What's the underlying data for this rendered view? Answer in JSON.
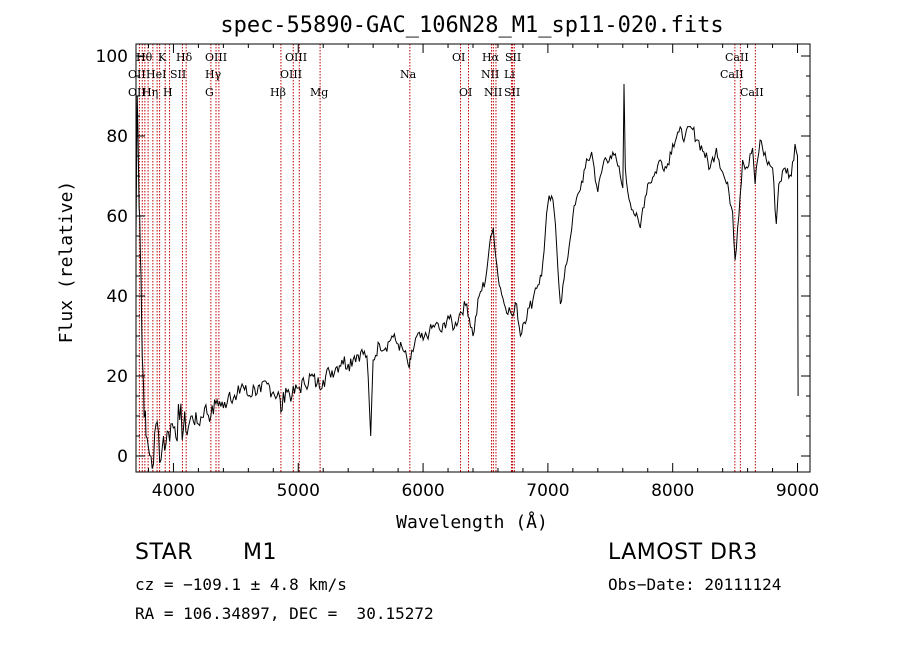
{
  "chart_data": {
    "type": "line",
    "title": "spec-55890-GAC_106N28_M1_sp11-020.fits",
    "xlabel": "Wavelength (Å)",
    "ylabel": "Flux (relative)",
    "xlim": [
      3700,
      9100
    ],
    "ylim": [
      -4,
      103
    ],
    "xticks": [
      4000,
      5000,
      6000,
      7000,
      8000,
      9000
    ],
    "yticks": [
      0,
      20,
      40,
      60,
      80,
      100
    ],
    "series": [
      {
        "name": "flux",
        "x": [
          3700,
          3710,
          3720,
          3730,
          3740,
          3750,
          3760,
          3770,
          3780,
          3800,
          3820,
          3840,
          3860,
          3880,
          3900,
          3920,
          3940,
          3960,
          3980,
          4000,
          4050,
          4100,
          4150,
          4200,
          4250,
          4300,
          4350,
          4400,
          4450,
          4500,
          4550,
          4600,
          4650,
          4700,
          4750,
          4800,
          4850,
          4861,
          4900,
          4950,
          5000,
          5050,
          5100,
          5150,
          5200,
          5250,
          5300,
          5350,
          5400,
          5450,
          5500,
          5550,
          5580,
          5600,
          5650,
          5700,
          5750,
          5800,
          5850,
          5890,
          5900,
          5950,
          6000,
          6050,
          6100,
          6150,
          6200,
          6250,
          6300,
          6350,
          6400,
          6450,
          6500,
          6530,
          6563,
          6600,
          6620,
          6650,
          6700,
          6720,
          6750,
          6780,
          6800,
          6850,
          6880,
          6900,
          6950,
          7000,
          7030,
          7060,
          7100,
          7150,
          7200,
          7250,
          7300,
          7350,
          7400,
          7450,
          7500,
          7550,
          7580,
          7600,
          7610,
          7620,
          7640,
          7700,
          7740,
          7760,
          7800,
          7850,
          7900,
          7950,
          8000,
          8050,
          8100,
          8150,
          8200,
          8250,
          8300,
          8350,
          8400,
          8450,
          8480,
          8500,
          8520,
          8560,
          8600,
          8640,
          8660,
          8700,
          8750,
          8800,
          8830,
          8850,
          8900,
          8950,
          8980,
          9000,
          9005
        ],
        "values": [
          55,
          90,
          72,
          60,
          45,
          25,
          18,
          10,
          5,
          2,
          0,
          -2,
          8,
          6,
          -1,
          5,
          3,
          6,
          8,
          7,
          9,
          6,
          10,
          8,
          12,
          10,
          14,
          12,
          16,
          14,
          18,
          15,
          17,
          16,
          18,
          16,
          15,
          11,
          17,
          15,
          17,
          18,
          20,
          18,
          19,
          21,
          22,
          24,
          23,
          25,
          26,
          25,
          5,
          24,
          28,
          27,
          30,
          28,
          26,
          22,
          24,
          30,
          29,
          31,
          33,
          31,
          35,
          32,
          36,
          38,
          30,
          40,
          44,
          52,
          57,
          45,
          42,
          38,
          36,
          35,
          38,
          30,
          33,
          37,
          39,
          42,
          45,
          63,
          65,
          58,
          38,
          48,
          60,
          66,
          72,
          76,
          66,
          74,
          75,
          74,
          70,
          67,
          93,
          72,
          66,
          60,
          57,
          62,
          68,
          70,
          74,
          72,
          78,
          81,
          80,
          82,
          79,
          76,
          72,
          77,
          71,
          66,
          61,
          49,
          57,
          74,
          72,
          77,
          68,
          79,
          74,
          72,
          58,
          68,
          72,
          70,
          78,
          75,
          15
        ]
      }
    ],
    "legend": "none",
    "grid": false,
    "lines": [
      {
        "wl": 3727,
        "labels": [
          "OII"
        ]
      },
      {
        "wl": 3750,
        "labels": [
          "OII"
        ]
      },
      {
        "wl": 3771,
        "labels": [
          "Hη"
        ]
      },
      {
        "wl": 3797,
        "labels": [
          "Hθ"
        ]
      },
      {
        "wl": 3835,
        "labels": [
          "Hη"
        ]
      },
      {
        "wl": 3869,
        "labels": [
          "NeIII"
        ]
      },
      {
        "wl": 3889,
        "labels": [
          "HeI"
        ]
      },
      {
        "wl": 3934,
        "labels": [
          "K"
        ]
      },
      {
        "wl": 3969,
        "labels": [
          "H"
        ]
      },
      {
        "wl": 4072,
        "labels": [
          "SII"
        ]
      },
      {
        "wl": 4102,
        "labels": [
          "Hδ"
        ]
      },
      {
        "wl": 4300,
        "labels": [
          "G"
        ]
      },
      {
        "wl": 4341,
        "labels": [
          "Hγ"
        ]
      },
      {
        "wl": 4364,
        "labels": [
          "OIII"
        ]
      },
      {
        "wl": 4861,
        "labels": [
          "Hβ"
        ]
      },
      {
        "wl": 4960,
        "labels": [
          "OIII"
        ]
      },
      {
        "wl": 5008,
        "labels": [
          "OIII"
        ]
      },
      {
        "wl": 5175,
        "labels": [
          "Mg"
        ]
      },
      {
        "wl": 5894,
        "labels": [
          "Na"
        ]
      },
      {
        "wl": 6300,
        "labels": [
          "OI"
        ]
      },
      {
        "wl": 6364,
        "labels": [
          "OI"
        ]
      },
      {
        "wl": 6548,
        "labels": [
          "NII"
        ]
      },
      {
        "wl": 6563,
        "labels": [
          "Hα"
        ]
      },
      {
        "wl": 6584,
        "labels": [
          "NII"
        ]
      },
      {
        "wl": 6708,
        "labels": [
          "Li"
        ]
      },
      {
        "wl": 6717,
        "labels": [
          "SII"
        ]
      },
      {
        "wl": 6731,
        "labels": [
          "SII"
        ]
      },
      {
        "wl": 8498,
        "labels": [
          "CaII"
        ]
      },
      {
        "wl": 8542,
        "labels": [
          "CaII"
        ]
      },
      {
        "wl": 8662,
        "labels": [
          "CaII"
        ]
      }
    ],
    "line_labels": [
      {
        "text": "Hθ",
        "row": 0
      },
      {
        "text": "K",
        "row": 0
      },
      {
        "text": "Hδ",
        "row": 0
      },
      {
        "text": "OIII",
        "row": 0
      },
      {
        "text": "OIII",
        "row": 0
      },
      {
        "text": "OI",
        "row": 0
      },
      {
        "text": "Hα",
        "row": 0
      },
      {
        "text": "SII",
        "row": 0
      },
      {
        "text": "CaII",
        "row": 0
      },
      {
        "text": "OII",
        "row": 1
      },
      {
        "text": "HeI",
        "row": 1
      },
      {
        "text": "SII",
        "row": 1
      },
      {
        "text": "Hγ",
        "row": 1
      },
      {
        "text": "OIII",
        "row": 1
      },
      {
        "text": "Na",
        "row": 1
      },
      {
        "text": "NII",
        "row": 1
      },
      {
        "text": "Li",
        "row": 1
      },
      {
        "text": "CaII",
        "row": 1
      },
      {
        "text": "OII",
        "row": 2
      },
      {
        "text": "Hη",
        "row": 2
      },
      {
        "text": "H",
        "row": 2
      },
      {
        "text": "G",
        "row": 2
      },
      {
        "text": "Hβ",
        "row": 2
      },
      {
        "text": "Mg",
        "row": 2
      },
      {
        "text": "OI",
        "row": 2
      },
      {
        "text": "NII",
        "row": 2
      },
      {
        "text": "SII",
        "row": 2
      },
      {
        "text": "CaII",
        "row": 2
      }
    ]
  },
  "info": {
    "class": "STAR",
    "subclass": "M1",
    "survey": "LAMOST DR3",
    "cz": "cz = −109.1 ± 4.8 km/s",
    "obs_date": "Obs−Date: 20111124",
    "coords": "RA = 106.34897, DEC =  30.15272"
  }
}
